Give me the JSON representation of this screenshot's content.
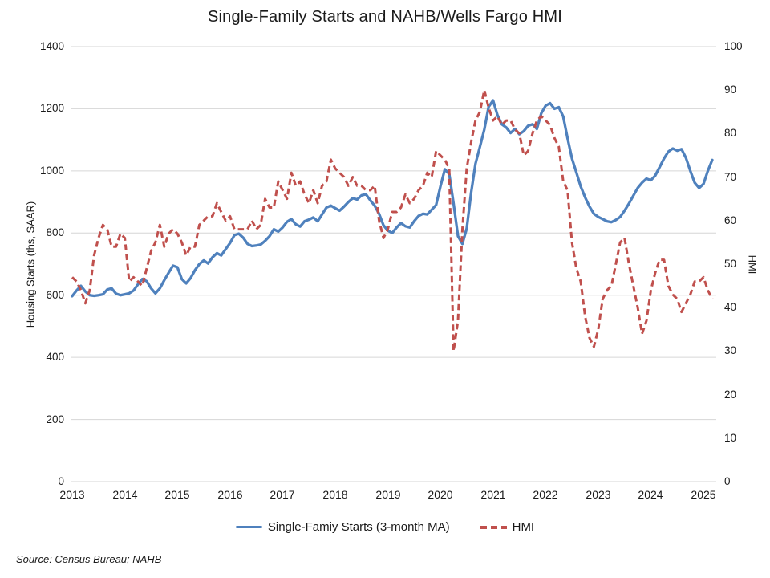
{
  "title": "Single-Family Starts and NAHB/Wells Fargo HMI",
  "source_note": "Source: Census Bureau; NAHB",
  "colors": {
    "starts_line": "#4f81bd",
    "hmi_line": "#c0504d",
    "gridline": "#d6d6d6",
    "text": "#1a1a1a"
  },
  "legend": {
    "items": [
      {
        "label": "Single-Famiy Starts (3-month MA)",
        "style": "solid"
      },
      {
        "label": "HMI",
        "style": "dashed"
      }
    ]
  },
  "left_axis": {
    "label": "Housing Starts (ths, SAAR)",
    "min": 0,
    "max": 1400,
    "ticks": [
      1400,
      1200,
      1000,
      800,
      600,
      400,
      200,
      0
    ]
  },
  "right_axis": {
    "label": "HMI",
    "min": 0,
    "max": 100,
    "ticks": [
      100,
      90,
      80,
      70,
      60,
      50,
      40,
      30,
      20,
      10,
      0
    ]
  },
  "x_axis": {
    "year_labels": [
      "2013",
      "2014",
      "2015",
      "2016",
      "2017",
      "2018",
      "2019",
      "2020",
      "2021",
      "2022",
      "2023",
      "2024",
      "2025"
    ]
  },
  "chart_data": {
    "type": "line",
    "frequency": "monthly",
    "x_start": "2013-01",
    "x_end": "2025-03",
    "title": "Single-Family Starts and NAHB/Wells Fargo HMI",
    "ylabel_left": "Housing Starts (ths, SAAR)",
    "ylabel_right": "HMI",
    "ylim_left": [
      0,
      1400
    ],
    "ylim_right": [
      0,
      100
    ],
    "grid": true,
    "legend_position": "bottom",
    "x_tick_labels": [
      "2013",
      "2014",
      "2015",
      "2016",
      "2017",
      "2018",
      "2019",
      "2020",
      "2021",
      "2022",
      "2023",
      "2024",
      "2025"
    ],
    "series": [
      {
        "name": "Single-Famiy Starts (3-month MA)",
        "axis": "left",
        "line_style": "solid",
        "values": [
          597,
          615,
          630,
          612,
          600,
          598,
          600,
          603,
          618,
          622,
          605,
          600,
          603,
          606,
          615,
          635,
          652,
          645,
          622,
          606,
          622,
          648,
          672,
          695,
          690,
          652,
          638,
          655,
          680,
          700,
          712,
          702,
          722,
          735,
          728,
          748,
          768,
          793,
          798,
          785,
          765,
          758,
          760,
          763,
          775,
          790,
          812,
          805,
          818,
          836,
          845,
          828,
          821,
          838,
          843,
          850,
          838,
          860,
          882,
          888,
          880,
          872,
          885,
          900,
          912,
          908,
          921,
          925,
          905,
          888,
          862,
          825,
          808,
          800,
          818,
          832,
          822,
          818,
          838,
          855,
          862,
          860,
          875,
          890,
          950,
          1005,
          990,
          895,
          790,
          765,
          815,
          930,
          1023,
          1077,
          1133,
          1206,
          1227,
          1180,
          1150,
          1140,
          1122,
          1135,
          1118,
          1128,
          1145,
          1150,
          1135,
          1185,
          1210,
          1218,
          1200,
          1205,
          1175,
          1105,
          1040,
          995,
          950,
          915,
          885,
          862,
          852,
          845,
          838,
          835,
          842,
          852,
          872,
          895,
          920,
          945,
          962,
          975,
          970,
          985,
          1012,
          1040,
          1062,
          1072,
          1065,
          1070,
          1042,
          1000,
          962,
          945,
          958,
          1000,
          1035
        ]
      },
      {
        "name": "HMI",
        "axis": "right",
        "line_style": "dashed",
        "values": [
          47,
          46,
          44,
          41,
          44,
          52,
          56,
          59,
          58,
          54,
          54,
          57,
          56,
          46,
          47,
          46,
          45,
          49,
          53,
          55,
          59,
          54,
          57,
          58,
          57,
          55,
          52,
          54,
          54,
          59,
          60,
          61,
          61,
          64,
          62,
          60,
          61,
          58,
          58,
          58,
          58,
          60,
          58,
          59,
          65,
          63,
          63,
          69,
          67,
          65,
          71,
          68,
          69,
          66,
          64,
          67,
          64,
          68,
          69,
          74,
          72,
          71,
          70,
          68,
          70,
          68,
          68,
          67,
          67,
          68,
          60,
          56,
          58,
          62,
          62,
          63,
          66,
          64,
          65,
          67,
          68,
          71,
          70,
          76,
          75,
          74,
          72,
          30,
          37,
          58,
          72,
          78,
          83,
          85,
          90,
          86,
          83,
          84,
          82,
          83,
          83,
          81,
          80,
          75,
          76,
          80,
          83,
          84,
          83,
          82,
          79,
          77,
          69,
          67,
          55,
          49,
          46,
          38,
          33,
          31,
          35,
          42,
          44,
          45,
          50,
          55,
          56,
          50,
          45,
          40,
          34,
          37,
          44,
          48,
          51,
          51,
          45,
          43,
          42,
          39,
          41,
          43,
          46,
          46,
          47,
          44,
          42
        ]
      }
    ]
  }
}
